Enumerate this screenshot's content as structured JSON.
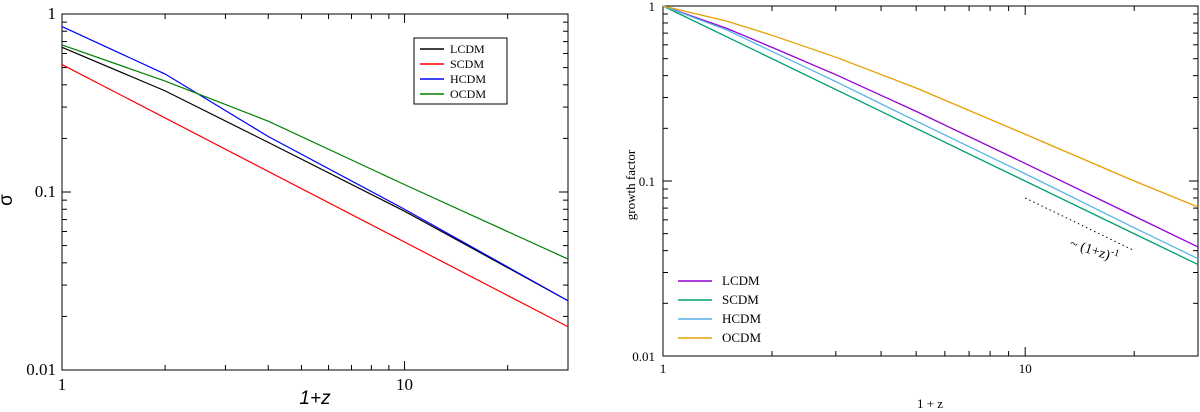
{
  "chart_data": [
    {
      "type": "line",
      "title": "",
      "xlabel": "1+z",
      "ylabel": "σ",
      "xscale": "log",
      "yscale": "log",
      "xlim": [
        1,
        30
      ],
      "ylim": [
        0.01,
        1
      ],
      "x_ticks": [
        1,
        10
      ],
      "x_tick_labels": [
        "1",
        "10"
      ],
      "y_ticks": [
        0.01,
        0.1,
        1
      ],
      "y_tick_labels": [
        "0.01",
        "0.1",
        "1"
      ],
      "legend_position": "top-right",
      "series": [
        {
          "name": "LCDM",
          "color": "#000000",
          "x": [
            1,
            2,
            4,
            10,
            30
          ],
          "y": [
            0.65,
            0.37,
            0.19,
            0.078,
            0.0245
          ]
        },
        {
          "name": "SCDM",
          "color": "#ff0000",
          "x": [
            1,
            30
          ],
          "y": [
            0.52,
            0.0175
          ]
        },
        {
          "name": "HCDM",
          "color": "#0000ff",
          "x": [
            1,
            2,
            4,
            10,
            30
          ],
          "y": [
            0.85,
            0.46,
            0.205,
            0.08,
            0.0245
          ]
        },
        {
          "name": "OCDM",
          "color": "#008000",
          "x": [
            1,
            2,
            4,
            10,
            30
          ],
          "y": [
            0.67,
            0.42,
            0.25,
            0.11,
            0.042
          ]
        }
      ]
    },
    {
      "type": "line",
      "title": "",
      "xlabel": "1 + z",
      "ylabel": "growth factor",
      "xscale": "log",
      "yscale": "log",
      "xlim": [
        1,
        30
      ],
      "ylim": [
        0.01,
        1
      ],
      "x_ticks": [
        1,
        10
      ],
      "x_tick_labels": [
        "1",
        "10"
      ],
      "y_ticks": [
        0.01,
        0.1,
        1
      ],
      "y_tick_labels": [
        "0.01",
        "0.1",
        "1"
      ],
      "legend_position": "bottom-left",
      "annotation": "~ (1+z)",
      "annotation_exponent": "-1",
      "series": [
        {
          "name": "LCDM",
          "color": "#9400d3",
          "x": [
            1,
            1.5,
            2,
            3,
            5,
            10,
            20,
            30
          ],
          "y": [
            1,
            0.745,
            0.58,
            0.405,
            0.25,
            0.126,
            0.063,
            0.042
          ]
        },
        {
          "name": "SCDM",
          "color": "#009e73",
          "x": [
            1,
            30
          ],
          "y": [
            1,
            0.0333
          ]
        },
        {
          "name": "HCDM",
          "color": "#56b4e9",
          "x": [
            1,
            1.5,
            2,
            3,
            5,
            10,
            20,
            30
          ],
          "y": [
            1,
            0.73,
            0.55,
            0.37,
            0.22,
            0.11,
            0.054,
            0.036
          ]
        },
        {
          "name": "OCDM",
          "color": "#e69f00",
          "x": [
            1,
            1.5,
            2,
            3,
            5,
            10,
            20,
            30
          ],
          "y": [
            1,
            0.82,
            0.68,
            0.51,
            0.34,
            0.185,
            0.1,
            0.071
          ]
        },
        {
          "name": "reference",
          "color": "#000000",
          "dashed": true,
          "x": [
            10,
            20
          ],
          "y": [
            0.08,
            0.04
          ]
        }
      ]
    }
  ]
}
